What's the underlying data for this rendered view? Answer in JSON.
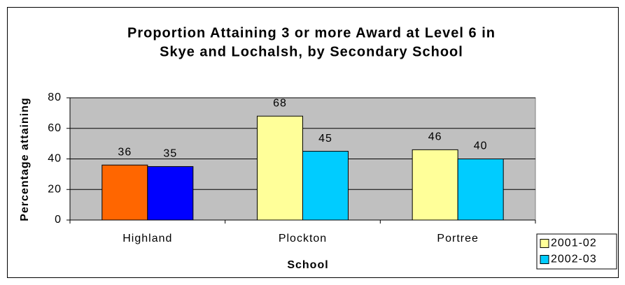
{
  "chart_data": {
    "type": "bar",
    "title": [
      "Proportion Attaining 3 or more Award at Level 6 in",
      "Skye and Lochalsh, by Secondary School"
    ],
    "x_label": "School",
    "y_label": "Percentage attaining",
    "categories": [
      "Highland",
      "Plockton",
      "Portree"
    ],
    "series": [
      {
        "name": "2001-02",
        "color": "#ffff99",
        "colors": [
          "#ff6600",
          "#ffff99",
          "#ffff99"
        ],
        "values": [
          36,
          68,
          46
        ]
      },
      {
        "name": "2002-03",
        "color": "#00ccff",
        "colors": [
          "#0000ff",
          "#00ccff",
          "#00ccff"
        ],
        "values": [
          35,
          45,
          40
        ]
      }
    ],
    "ylim": [
      0,
      80
    ],
    "yticks": [
      0,
      20,
      40,
      60,
      80
    ],
    "grid": true,
    "plot_background": "#c0c0c0",
    "legend": "bottom-right"
  }
}
